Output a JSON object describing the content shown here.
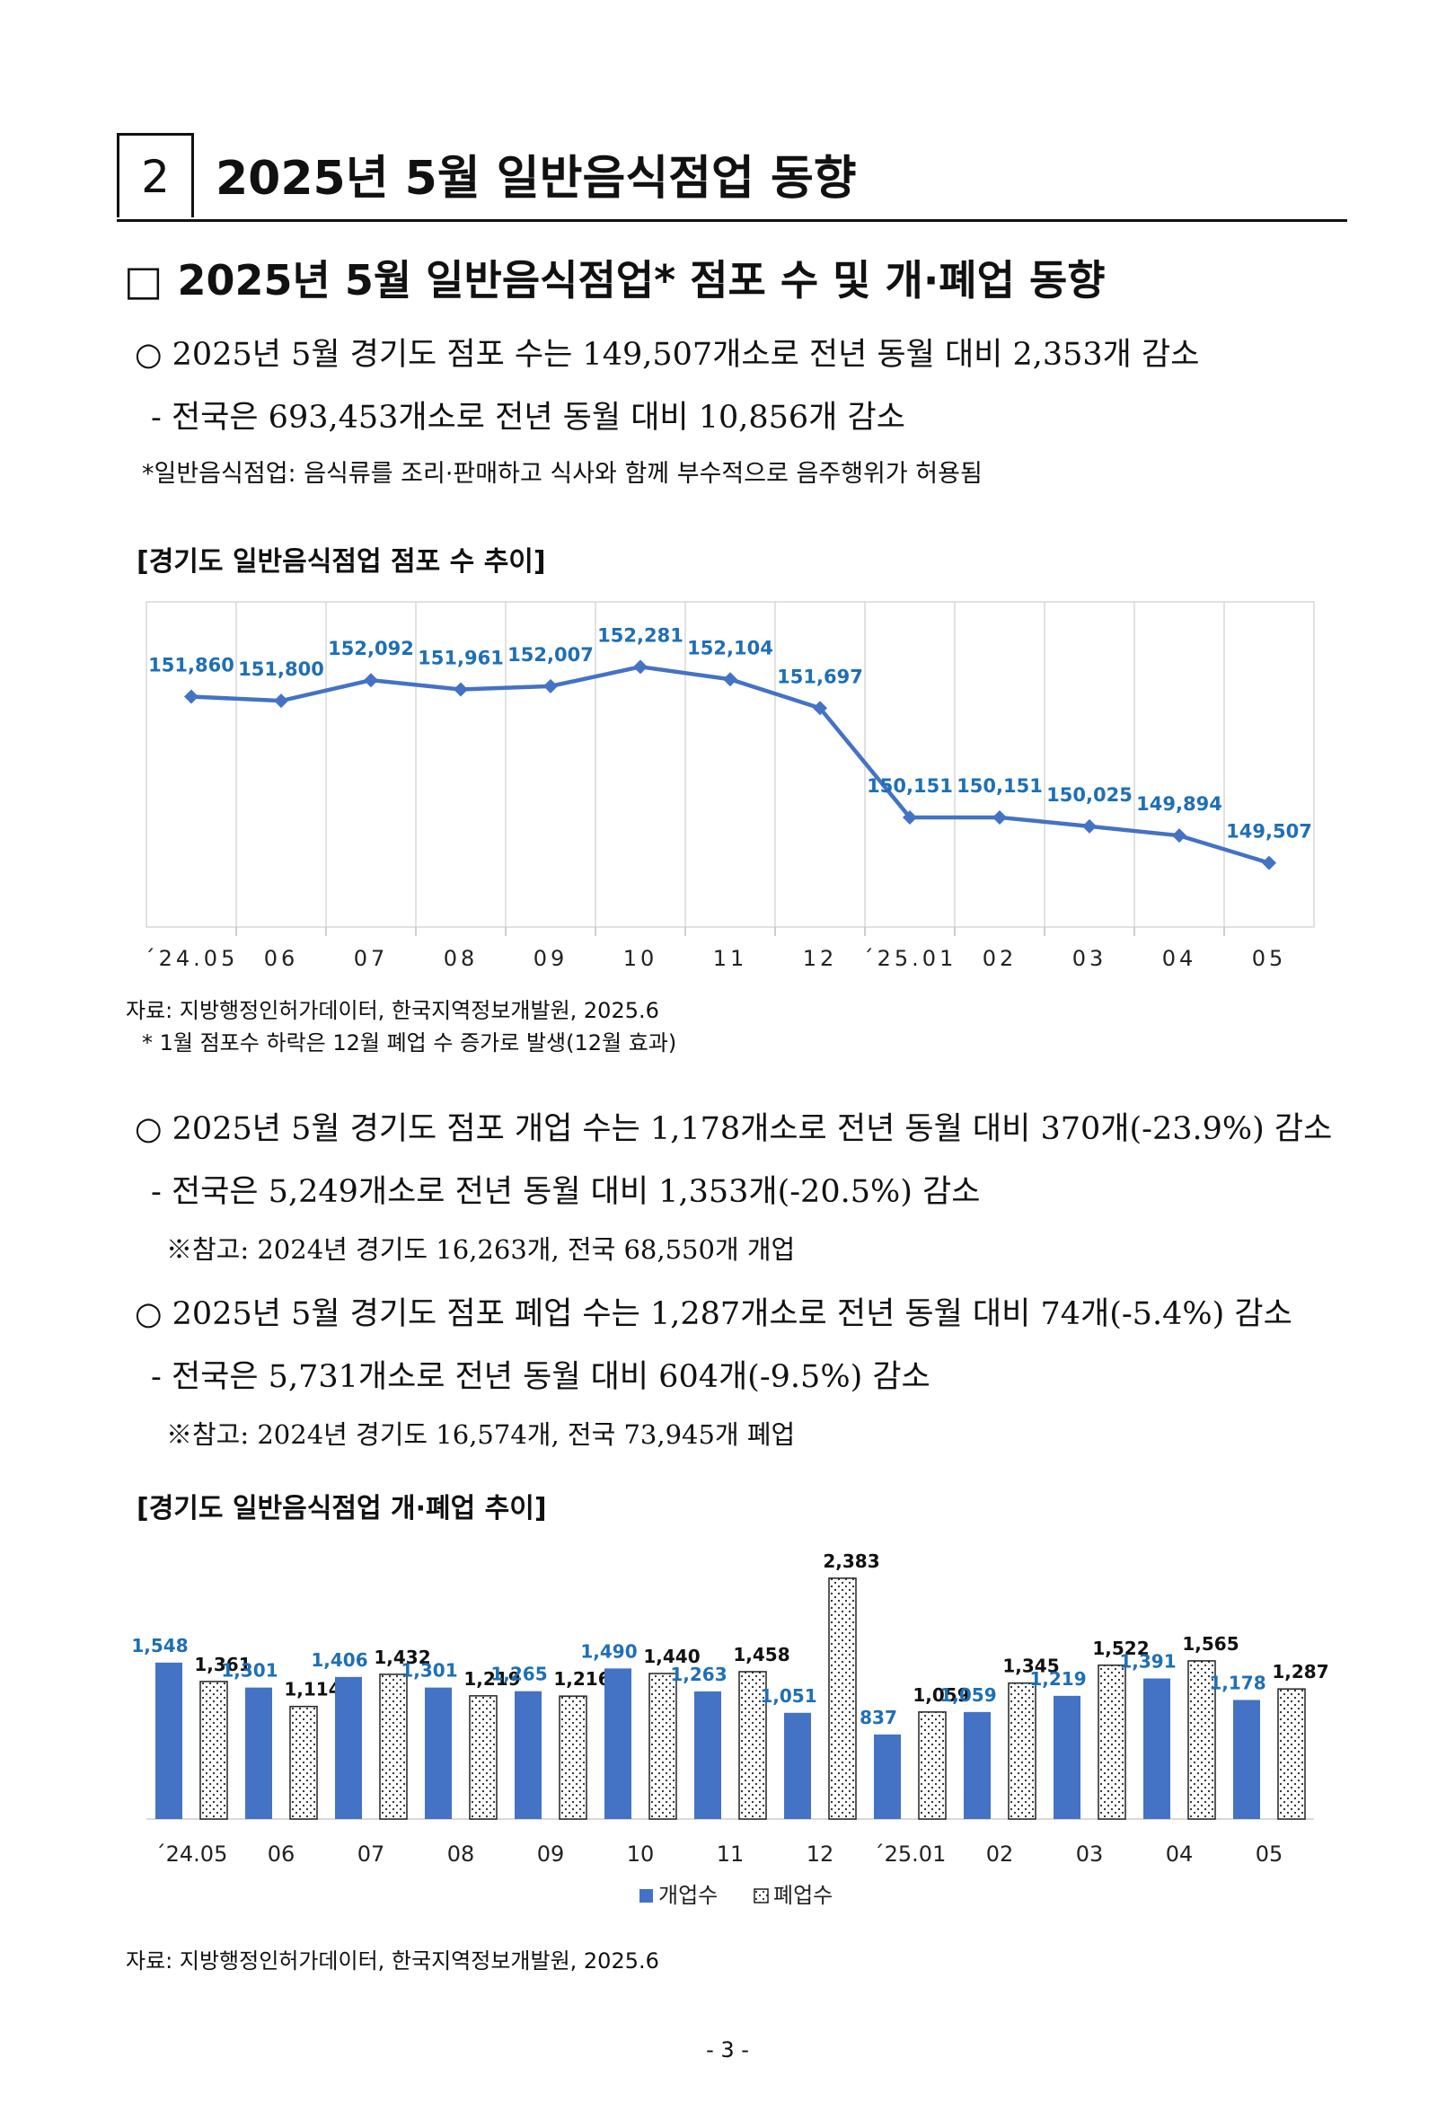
{
  "section": {
    "number": "2",
    "title": "2025년 5월 일반음식점업 동향"
  },
  "heading": "□ 2025년 5월 일반음식점업* 점포 수 및 개·폐업 동향",
  "bullets_stores": [
    "○ 2025년 5월 경기도 점포 수는 149,507개소로 전년 동월 대비 2,353개 감소",
    "- 전국은 693,453개소로 전년 동월 대비 10,856개 감소"
  ],
  "footnote_definition": "*일반음식점업: 음식류를 조리·판매하고 식사와 함께 부수적으로 음주행위가 허용됨",
  "chart1_title": "[경기도 일반음식점업 점포 수 추이]",
  "chart1_source": "자료: 지방행정인허가데이터, 한국지역정보개발원, 2025.6",
  "chart1_note": "* 1월 점포수 하락은 12월 폐업 수 증가로 발생(12월 효과)",
  "bullets_open": [
    "○ 2025년 5월 경기도 점포 개업 수는 1,178개소로 전년 동월 대비 370개(-23.9%) 감소",
    "- 전국은  5,249개소로 전년 동월 대비 1,353개(-20.5%) 감소"
  ],
  "note_open": "※참고: 2024년 경기도 16,263개, 전국 68,550개 개업",
  "bullets_close": [
    "○ 2025년 5월 경기도 점포 폐업 수는 1,287개소로 전년 동월 대비 74개(-5.4%) 감소",
    "- 전국은  5,731개소로 전년 동월 대비 604개(-9.5%) 감소"
  ],
  "note_close": "※참고: 2024년 경기도 16,574개, 전국 73,945개 폐업",
  "chart2_title": "[경기도 일반음식점업 개·폐업 추이]",
  "chart2_source": "자료: 지방행정인허가데이터, 한국지역정보개발원, 2025.6",
  "page_number": "- 3 -",
  "chart_data": [
    {
      "type": "line",
      "categories": [
        "´24.05",
        "06",
        "07",
        "08",
        "09",
        "10",
        "11",
        "12",
        "´25.01",
        "02",
        "03",
        "04",
        "05"
      ],
      "values": [
        151860,
        151800,
        152092,
        151961,
        152007,
        152281,
        152104,
        151697,
        150151,
        150151,
        150025,
        149894,
        149507
      ],
      "value_labels": [
        "151,860",
        "151,800",
        "152,092",
        "151,961",
        "152,007",
        "152,281",
        "152,104",
        "151,697",
        "150,151",
        "150,151",
        "150,025",
        "149,894",
        "149,507"
      ],
      "ylim": [
        148600,
        153200
      ],
      "grid": "vertical",
      "color": "#4472C4",
      "label_color": "#1F6FB5"
    },
    {
      "type": "bar",
      "categories": [
        "´24.05",
        "06",
        "07",
        "08",
        "09",
        "10",
        "11",
        "12",
        "´25.01",
        "02",
        "03",
        "04",
        "05"
      ],
      "series": [
        {
          "name": "개업수",
          "values": [
            1548,
            1301,
            1406,
            1301,
            1265,
            1490,
            1263,
            1051,
            837,
            1059,
            1219,
            1391,
            1178
          ],
          "value_labels": [
            "1,548",
            "1,301",
            "1,406",
            "1,301",
            "1,265",
            "1,490",
            "1,263",
            "1,051",
            "837",
            "1,059",
            "1,219",
            "1,391",
            "1,178"
          ],
          "color": "#4472C4",
          "label_color": "#1F6FB5"
        },
        {
          "name": "폐업수",
          "values": [
            1361,
            1114,
            1432,
            1219,
            1216,
            1440,
            1458,
            2383,
            1059,
            1345,
            1522,
            1565,
            1287
          ],
          "value_labels": [
            "1,361",
            "1,114",
            "1,432",
            "1,219",
            "1,216",
            "1,440",
            "1,458",
            "2,383",
            "1,059",
            "1,345",
            "1,522",
            "1,565",
            "1,287"
          ],
          "color": "#ffffff",
          "pattern": "dotted",
          "label_color": "#111111"
        }
      ],
      "ylim": [
        0,
        2800
      ],
      "legend": "bottom"
    }
  ]
}
